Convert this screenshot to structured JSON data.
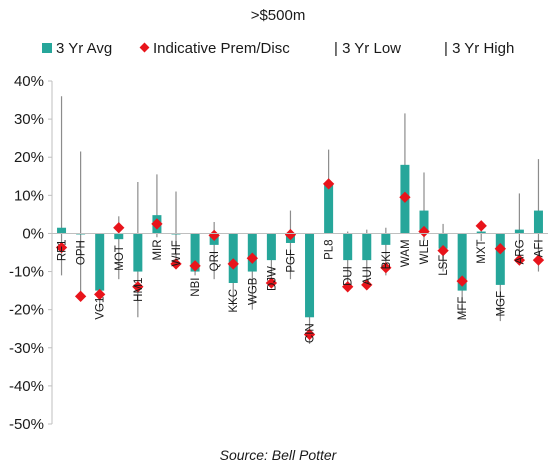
{
  "chart_data": {
    "type": "bar",
    "title": ">$500m",
    "source": "Source: Bell Potter",
    "y_ticks": [
      "40%",
      "30%",
      "20%",
      "10%",
      "0%",
      "-10%",
      "-20%",
      "-30%",
      "-40%",
      "-50%"
    ],
    "ylim": [
      -0.5,
      0.4
    ],
    "colors": {
      "bar": "#26a69a",
      "marker": "#e8141b",
      "range": "#8c8c8c",
      "axis": "#bfbfbf"
    },
    "legend": [
      {
        "label": "3 Yr Avg",
        "icon": "teal-square-icon"
      },
      {
        "label": "Indicative Prem/Disc",
        "icon": "red-diamond-icon"
      },
      {
        "label": "| 3 Yr Low",
        "icon": "none"
      },
      {
        "label": "| 3 Yr High",
        "icon": "none"
      }
    ],
    "categories": [
      "RF1",
      "OPH",
      "VG1",
      "MOT",
      "HM1",
      "MIR",
      "WHF",
      "NBI",
      "QRI",
      "KKC",
      "WGB",
      "DJW",
      "PGF",
      "CIN",
      "PL8",
      "DUI",
      "AUI",
      "BKI",
      "WAM",
      "WLE",
      "LSF",
      "MFF",
      "MXT",
      "MGF",
      "ARG",
      "AFI"
    ],
    "series": [
      {
        "name": "3 Yr Avg",
        "values": [
          0.015,
          -0.002,
          -0.15,
          -0.015,
          -0.1,
          0.048,
          -0.002,
          -0.1,
          -0.03,
          -0.13,
          -0.1,
          -0.07,
          -0.025,
          -0.22,
          0.13,
          -0.07,
          -0.07,
          -0.03,
          0.18,
          0.06,
          -0.04,
          -0.15,
          0.005,
          -0.135,
          0.01,
          0.06
        ]
      },
      {
        "name": "Indicative Prem/Disc",
        "values": [
          -0.037,
          -0.165,
          -0.16,
          0.015,
          -0.14,
          0.025,
          -0.08,
          -0.085,
          -0.005,
          -0.08,
          -0.065,
          -0.13,
          -0.003,
          -0.265,
          0.13,
          -0.14,
          -0.135,
          -0.09,
          0.095,
          0.005,
          -0.045,
          -0.125,
          0.02,
          -0.04,
          -0.07,
          -0.07
        ]
      },
      {
        "name": "3 Yr Low",
        "values": [
          -0.11,
          -0.17,
          -0.205,
          -0.12,
          -0.22,
          -0.01,
          -0.08,
          -0.11,
          -0.12,
          -0.19,
          -0.2,
          -0.14,
          -0.12,
          -0.29,
          0.015,
          -0.14,
          -0.13,
          -0.11,
          0.09,
          -0.02,
          -0.1,
          -0.21,
          -0.02,
          -0.23,
          -0.08,
          -0.1
        ]
      },
      {
        "name": "3 Yr High",
        "values": [
          0.36,
          0.215,
          -0.07,
          0.045,
          0.135,
          0.155,
          0.11,
          -0.045,
          0.03,
          -0.02,
          -0.04,
          -0.04,
          0.06,
          -0.19,
          0.22,
          0.005,
          0.01,
          0.015,
          0.315,
          0.16,
          0.025,
          -0.08,
          0.03,
          0.0,
          0.105,
          0.195
        ]
      }
    ]
  }
}
